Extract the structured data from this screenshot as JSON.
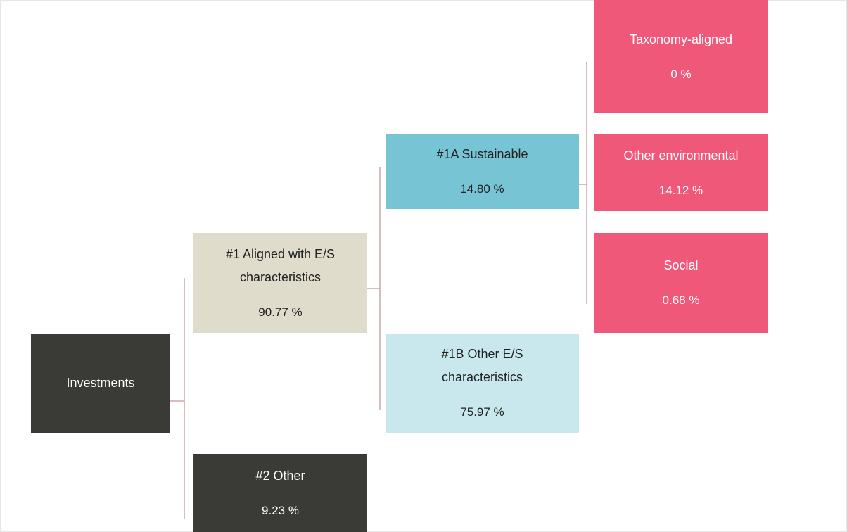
{
  "nodes": [
    {
      "label": "Investments"
    },
    {
      "label": "#1 Aligned with E/S characteristics",
      "value": "90.77 %"
    },
    {
      "label": "#2 Other",
      "value": "9.23 %"
    },
    {
      "label": "#1A Sustainable",
      "value": "14.80 %"
    },
    {
      "label": "#1B Other E/S characteristics",
      "value": "75.97 %"
    },
    {
      "label": "Taxonomy-aligned",
      "value": "0 %"
    },
    {
      "label": "Other environmental",
      "value": "14.12 %"
    },
    {
      "label": "Social",
      "value": "0.68 %"
    }
  ]
}
